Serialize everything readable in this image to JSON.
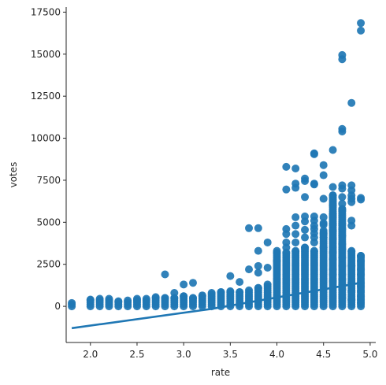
{
  "chart_data": {
    "type": "scatter",
    "title": "",
    "xlabel": "rate",
    "ylabel": "votes",
    "xlim": [
      1.74,
      5.06
    ],
    "ylim": [
      -2150,
      17800
    ],
    "xticks": [
      2.0,
      2.5,
      3.0,
      3.5,
      4.0,
      4.5,
      5.0
    ],
    "xtick_labels": [
      "2.0",
      "2.5",
      "3.0",
      "3.5",
      "4.0",
      "4.5",
      "5.0"
    ],
    "yticks": [
      0,
      2500,
      5000,
      7500,
      10000,
      12500,
      15000,
      17500
    ],
    "ytick_labels": [
      "0",
      "2500",
      "5000",
      "7500",
      "10000",
      "12500",
      "15000",
      "17500"
    ],
    "grid": false,
    "legend": "none",
    "marker_color": "#1f77b4",
    "rates": [
      1.8,
      2.0,
      2.1,
      2.2,
      2.3,
      2.4,
      2.5,
      2.6,
      2.7,
      2.8,
      2.9,
      3.0,
      3.1,
      3.2,
      3.3,
      3.4,
      3.5,
      3.6,
      3.7,
      3.8,
      3.9,
      4.0,
      4.1,
      4.2,
      4.3,
      4.4,
      4.5,
      4.6,
      4.7,
      4.8,
      4.9
    ],
    "column_max_votes": [
      200,
      400,
      450,
      450,
      300,
      350,
      450,
      450,
      550,
      500,
      500,
      600,
      500,
      650,
      800,
      850,
      900,
      850,
      950,
      1100,
      1300,
      3200,
      3200,
      3300,
      3500,
      3300,
      4400,
      6600,
      5800,
      3300,
      3000
    ],
    "outliers": [
      [
        2.8,
        1900
      ],
      [
        2.9,
        800
      ],
      [
        3.0,
        1300
      ],
      [
        3.1,
        1400
      ],
      [
        3.5,
        1800
      ],
      [
        3.6,
        1450
      ],
      [
        3.7,
        2200
      ],
      [
        3.7,
        4650
      ],
      [
        3.8,
        4650
      ],
      [
        3.8,
        3300
      ],
      [
        3.8,
        2400
      ],
      [
        3.8,
        2000
      ],
      [
        3.9,
        3800
      ],
      [
        3.9,
        2300
      ],
      [
        4.0,
        3300
      ],
      [
        4.0,
        2700
      ],
      [
        4.1,
        8300
      ],
      [
        4.1,
        6950
      ],
      [
        4.1,
        4600
      ],
      [
        4.1,
        4300
      ],
      [
        4.1,
        3800
      ],
      [
        4.1,
        3500
      ],
      [
        4.2,
        8200
      ],
      [
        4.2,
        7300
      ],
      [
        4.2,
        7050
      ],
      [
        4.2,
        5300
      ],
      [
        4.2,
        4800
      ],
      [
        4.2,
        4300
      ],
      [
        4.2,
        3800
      ],
      [
        4.3,
        7600
      ],
      [
        4.3,
        7450
      ],
      [
        4.3,
        6500
      ],
      [
        4.3,
        5350
      ],
      [
        4.3,
        5050
      ],
      [
        4.3,
        4550
      ],
      [
        4.3,
        4100
      ],
      [
        4.4,
        9100
      ],
      [
        4.4,
        9050
      ],
      [
        4.4,
        7300
      ],
      [
        4.4,
        7250
      ],
      [
        4.4,
        5350
      ],
      [
        4.4,
        5100
      ],
      [
        4.4,
        4800
      ],
      [
        4.4,
        4600
      ],
      [
        4.4,
        4350
      ],
      [
        4.4,
        4100
      ],
      [
        4.4,
        3800
      ],
      [
        4.5,
        8400
      ],
      [
        4.5,
        7800
      ],
      [
        4.5,
        6400
      ],
      [
        4.5,
        5300
      ],
      [
        4.5,
        4950
      ],
      [
        4.5,
        4850
      ],
      [
        4.5,
        4500
      ],
      [
        4.5,
        4300
      ],
      [
        4.5,
        4100
      ],
      [
        4.5,
        3500
      ],
      [
        4.6,
        9300
      ],
      [
        4.6,
        7100
      ],
      [
        4.6,
        6000
      ],
      [
        4.6,
        5500
      ],
      [
        4.6,
        5300
      ],
      [
        4.6,
        4900
      ],
      [
        4.6,
        4500
      ],
      [
        4.6,
        4000
      ],
      [
        4.6,
        3200
      ],
      [
        4.6,
        2800
      ],
      [
        4.6,
        2200
      ],
      [
        4.6,
        1900
      ],
      [
        4.6,
        1500
      ],
      [
        4.7,
        14950
      ],
      [
        4.7,
        14700
      ],
      [
        4.7,
        10550
      ],
      [
        4.7,
        10400
      ],
      [
        4.7,
        7200
      ],
      [
        4.7,
        7000
      ],
      [
        4.7,
        6500
      ],
      [
        4.7,
        6100
      ],
      [
        4.7,
        5700
      ],
      [
        4.7,
        4900
      ],
      [
        4.7,
        4600
      ],
      [
        4.7,
        4200
      ],
      [
        4.7,
        3700
      ],
      [
        4.7,
        3400
      ],
      [
        4.7,
        2900
      ],
      [
        4.7,
        2400
      ],
      [
        4.7,
        1900
      ],
      [
        4.7,
        1600
      ],
      [
        4.7,
        1300
      ],
      [
        4.7,
        1000
      ],
      [
        4.7,
        700
      ],
      [
        4.7,
        500
      ],
      [
        4.8,
        12100
      ],
      [
        4.8,
        7200
      ],
      [
        4.8,
        6900
      ],
      [
        4.8,
        6600
      ],
      [
        4.8,
        6400
      ],
      [
        4.8,
        6200
      ],
      [
        4.8,
        5100
      ],
      [
        4.8,
        4800
      ],
      [
        4.8,
        2400
      ],
      [
        4.8,
        1400
      ],
      [
        4.8,
        900
      ],
      [
        4.8,
        400
      ],
      [
        4.9,
        16850
      ],
      [
        4.9,
        16400
      ],
      [
        4.9,
        6450
      ],
      [
        4.9,
        6350
      ],
      [
        4.9,
        3000
      ],
      [
        4.9,
        2700
      ],
      [
        4.9,
        2200
      ],
      [
        4.9,
        1900
      ],
      [
        4.9,
        1400
      ],
      [
        4.9,
        1200
      ],
      [
        4.9,
        900
      ],
      [
        4.9,
        600
      ],
      [
        4.9,
        400
      ],
      [
        4.9,
        200
      ]
    ],
    "regression_line": {
      "x": [
        1.8,
        3.3,
        4.9
      ],
      "y": [
        -1300,
        -150,
        1400
      ],
      "color": "#1f77b4"
    }
  }
}
